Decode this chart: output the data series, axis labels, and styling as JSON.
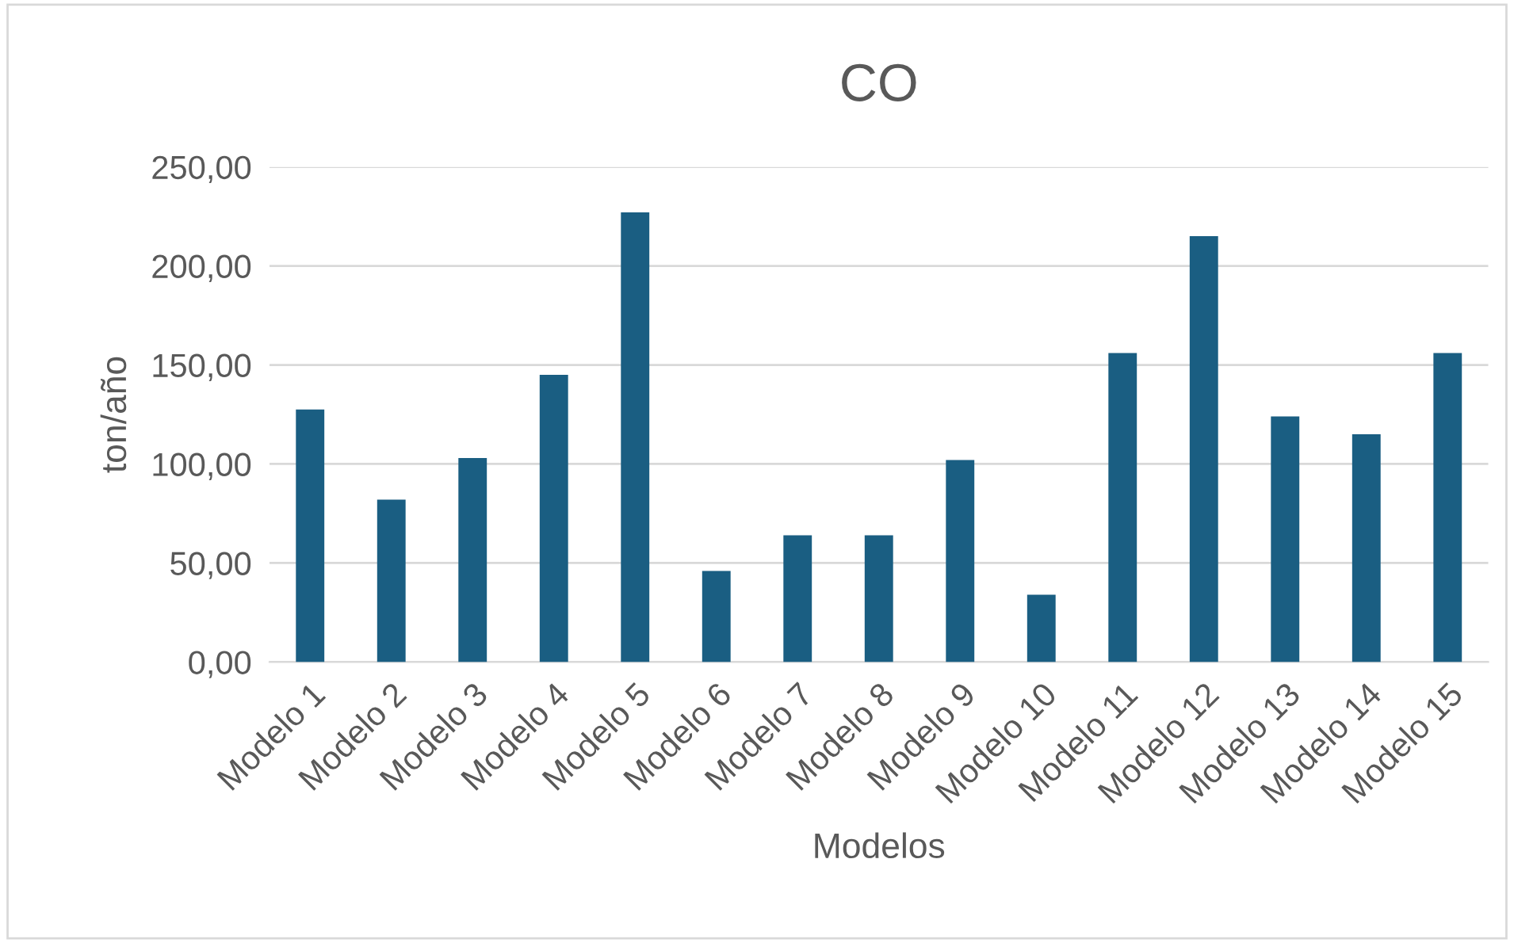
{
  "chart_data": {
    "type": "bar",
    "title": "CO",
    "xlabel": "Modelos",
    "ylabel": "ton/año",
    "categories": [
      "Modelo 1",
      "Modelo 2",
      "Modelo 3",
      "Modelo 4",
      "Modelo 5",
      "Modelo 6",
      "Modelo 7",
      "Modelo 8",
      "Modelo 9",
      "Modelo 10",
      "Modelo 11",
      "Modelo 12",
      "Modelo 13",
      "Modelo 14",
      "Modelo 15"
    ],
    "values": [
      127.5,
      82,
      103,
      145,
      227,
      46,
      64,
      64,
      102,
      34,
      156,
      215,
      124,
      115,
      156
    ],
    "color": "#1a5e82",
    "ylim": [
      0,
      250
    ],
    "yticks": [
      {
        "value": 0,
        "label": "0,00"
      },
      {
        "value": 50,
        "label": "50,00"
      },
      {
        "value": 100,
        "label": "100,00"
      },
      {
        "value": 150,
        "label": "150,00"
      },
      {
        "value": 200,
        "label": "200,00"
      },
      {
        "value": 250,
        "label": "250,00"
      }
    ],
    "grid": "y"
  }
}
